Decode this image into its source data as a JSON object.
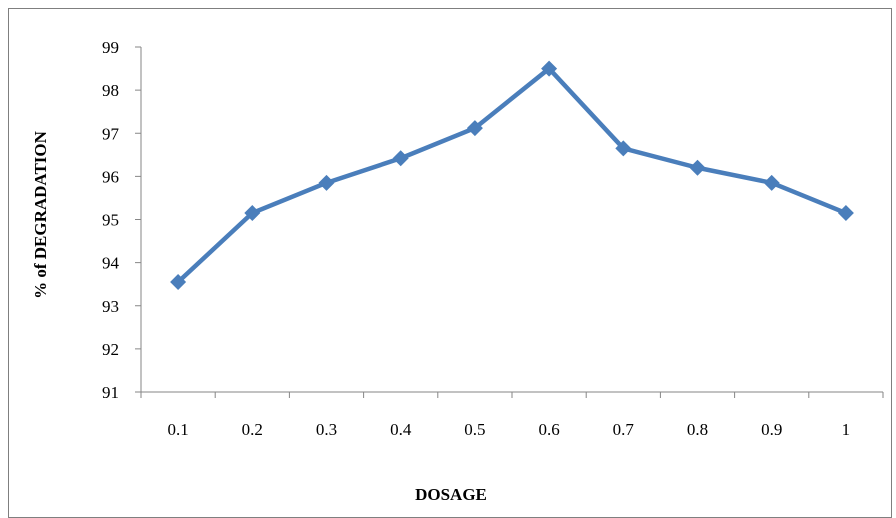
{
  "chart_data": {
    "type": "line",
    "title": "",
    "xlabel": "DOSAGE",
    "ylabel": "% of DEGRADATION",
    "categories": [
      "0.1",
      "0.2",
      "0.3",
      "0.4",
      "0.5",
      "0.6",
      "0.7",
      "0.8",
      "0.9",
      "1"
    ],
    "series": [
      {
        "values": [
          93.55,
          95.15,
          95.85,
          96.42,
          97.12,
          98.5,
          96.65,
          96.2,
          95.85,
          95.15
        ],
        "color": "#4a7ebb",
        "marker": "diamond"
      }
    ],
    "ylim": [
      91,
      99
    ],
    "yticks": [
      "91",
      "92",
      "93",
      "94",
      "95",
      "96",
      "97",
      "98",
      "99"
    ],
    "grid": false,
    "legend": "none"
  }
}
